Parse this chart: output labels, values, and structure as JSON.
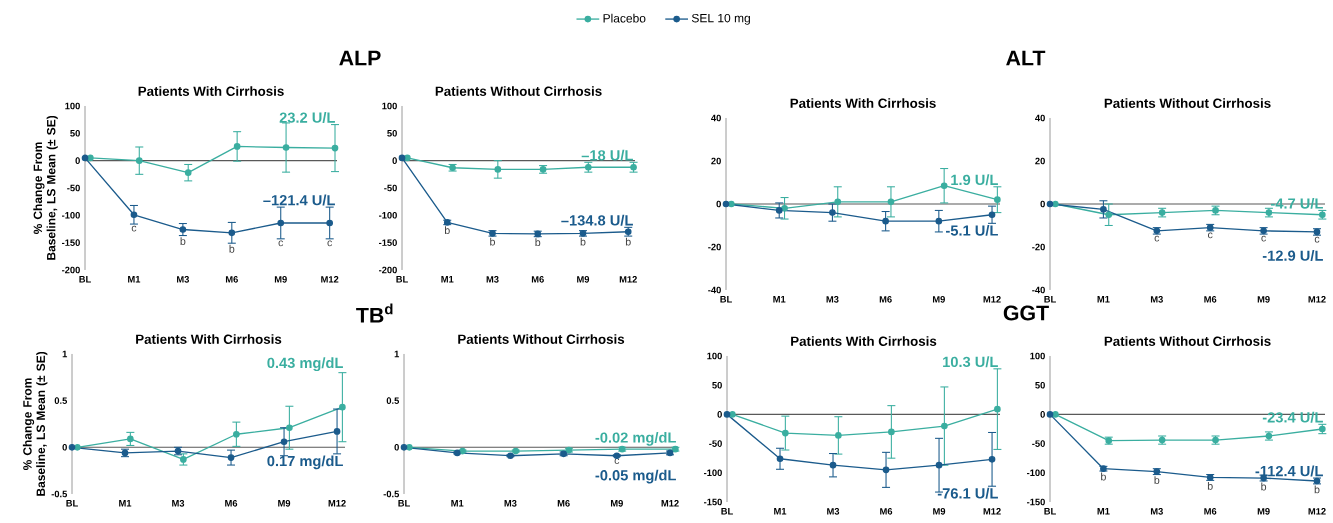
{
  "chart_data": [
    {
      "type": "line",
      "title": "ALP",
      "subtitle": "Patients With Cirrhosis",
      "ylabel": "% Change From Baseline, LS Mean (± SE)",
      "legend": "top",
      "marker": "circle",
      "line_style": "solid",
      "categories": [
        "BL",
        "M1",
        "M3",
        "M6",
        "M9",
        "M12"
      ],
      "ylim": [
        -200,
        100
      ],
      "yticks": [
        -200,
        -150,
        -100,
        -50,
        0,
        50,
        100
      ],
      "ref_lines": [
        {
          "axis": "y",
          "value": 0,
          "color": "#595959"
        }
      ],
      "series": [
        {
          "name": "Placebo",
          "color": "#3aaea0",
          "values": [
            5,
            0,
            -22,
            26,
            24,
            23
          ],
          "errors": [
            null,
            25,
            15,
            27,
            45,
            43
          ]
        },
        {
          "name": "SEL 10 mg",
          "color": "#1b5b8c",
          "values": [
            5,
            -99,
            -126,
            -132,
            -114,
            -114
          ],
          "errors": [
            null,
            17,
            11,
            19,
            29,
            29
          ]
        }
      ],
      "annotations": [
        "23.2 U/L",
        "–121.4 U/L",
        {
          "text": "c",
          "x": "M1",
          "y": -99
        },
        {
          "text": "b",
          "x": "M3",
          "y": -126
        },
        {
          "text": "b",
          "x": "M6",
          "y": -132
        },
        {
          "text": "c",
          "x": "M9",
          "y": -114
        },
        {
          "text": "c",
          "x": "M12",
          "y": -114
        }
      ]
    },
    {
      "type": "line",
      "subtitle": "Patients Without Cirrhosis",
      "marker": "circle",
      "line_style": "solid",
      "categories": [
        "BL",
        "M1",
        "M3",
        "M6",
        "M9",
        "M12"
      ],
      "ylim": [
        -200,
        100
      ],
      "yticks": [
        -200,
        -150,
        -100,
        -50,
        0,
        50,
        100
      ],
      "ref_lines": [
        {
          "axis": "y",
          "value": 0,
          "color": "#595959"
        }
      ],
      "series": [
        {
          "color": "#3aaea0",
          "values": [
            5,
            -13,
            -16,
            -16,
            -12,
            -12
          ],
          "errors": [
            null,
            6,
            16,
            7,
            9,
            9
          ]
        },
        {
          "color": "#1b5b8c",
          "values": [
            5,
            -113,
            -133,
            -134,
            -133,
            -130
          ],
          "errors": [
            null,
            4,
            5,
            5,
            5,
            8
          ]
        }
      ],
      "annotations": [
        "–18 U/L",
        "–134.8 U/L",
        {
          "text": "b",
          "x": "M1",
          "y": -113
        },
        {
          "text": "b",
          "x": "M3",
          "y": -133
        },
        {
          "text": "b",
          "x": "M6",
          "y": -134
        },
        {
          "text": "b",
          "x": "M9",
          "y": -133
        },
        {
          "text": "b",
          "x": "M12",
          "y": -130
        }
      ]
    },
    {
      "type": "line",
      "title": "ALT",
      "subtitle": "Patients With Cirrhosis",
      "marker": "circle",
      "line_style": "solid",
      "categories": [
        "BL",
        "M1",
        "M3",
        "M6",
        "M9",
        "M12"
      ],
      "ylim": [
        -40,
        40
      ],
      "yticks": [
        -40,
        -20,
        0,
        20,
        40
      ],
      "ref_lines": [
        {
          "axis": "y",
          "value": 0,
          "color": "#595959"
        }
      ],
      "series": [
        {
          "color": "#3aaea0",
          "values": [
            0,
            -2,
            1,
            1,
            8.5,
            2
          ],
          "errors": [
            null,
            5,
            7,
            7,
            8,
            6
          ]
        },
        {
          "color": "#1b5b8c",
          "values": [
            0,
            -3,
            -4,
            -8,
            -8,
            -5
          ],
          "errors": [
            null,
            3.5,
            4,
            4.5,
            5,
            4
          ]
        }
      ],
      "annotations": [
        "1.9 U/L",
        "-5.1 U/L"
      ]
    },
    {
      "type": "line",
      "subtitle": "Patients Without Cirrhosis",
      "marker": "circle",
      "line_style": "solid",
      "categories": [
        "BL",
        "M1",
        "M3",
        "M6",
        "M9",
        "M12"
      ],
      "ylim": [
        -40,
        40
      ],
      "yticks": [
        -40,
        -20,
        0,
        20,
        40
      ],
      "ref_lines": [
        {
          "axis": "y",
          "value": 0,
          "color": "#595959"
        }
      ],
      "series": [
        {
          "color": "#3aaea0",
          "values": [
            0,
            -5,
            -4,
            -3,
            -4,
            -5
          ],
          "errors": [
            null,
            5,
            2,
            2,
            2,
            2
          ]
        },
        {
          "color": "#1b5b8c",
          "values": [
            0,
            -2.5,
            -12.5,
            -11,
            -12.5,
            -13
          ],
          "errors": [
            null,
            4,
            1.5,
            1.5,
            1.5,
            1.5
          ]
        }
      ],
      "annotations": [
        "-4.7 U/L",
        "-12.9 U/L",
        {
          "text": "c",
          "x": "M3",
          "y": -12.5
        },
        {
          "text": "c",
          "x": "M6",
          "y": -11
        },
        {
          "text": "c",
          "x": "M9",
          "y": -12.5
        },
        {
          "text": "c",
          "x": "M12",
          "y": -13
        }
      ]
    },
    {
      "type": "line",
      "title": "TB$^{d}$",
      "subtitle": "Patients With Cirrhosis",
      "ylabel": "% Change From Baseline, LS Mean (± SE)",
      "marker": "circle",
      "line_style": "solid",
      "categories": [
        "BL",
        "M1",
        "M3",
        "M6",
        "M9",
        "M12"
      ],
      "ylim": [
        -0.5,
        1
      ],
      "yticks": [
        -0.5,
        0,
        0.5,
        1
      ],
      "ref_lines": [
        {
          "axis": "y",
          "value": 0,
          "color": "#595959"
        }
      ],
      "series": [
        {
          "color": "#3aaea0",
          "values": [
            0,
            0.09,
            -0.13,
            0.14,
            0.21,
            0.43
          ],
          "errors": [
            null,
            0.07,
            0.06,
            0.13,
            0.23,
            0.37
          ]
        },
        {
          "color": "#1b5b8c",
          "values": [
            0,
            -0.06,
            -0.04,
            -0.11,
            0.06,
            0.17
          ],
          "errors": [
            null,
            0.04,
            0.04,
            0.08,
            0.15,
            0.24
          ]
        }
      ],
      "annotations": [
        "0.43 mg/dL",
        "0.17 mg/dL"
      ]
    },
    {
      "type": "line",
      "subtitle": "Patients Without Cirrhosis",
      "marker": "circle",
      "line_style": "solid",
      "categories": [
        "BL",
        "M1",
        "M3",
        "M6",
        "M9",
        "M12"
      ],
      "ylim": [
        -0.5,
        1
      ],
      "yticks": [
        -0.5,
        0,
        0.5,
        1
      ],
      "ref_lines": [
        {
          "axis": "y",
          "value": 0,
          "color": "#595959"
        }
      ],
      "series": [
        {
          "color": "#3aaea0",
          "values": [
            0,
            -0.04,
            -0.04,
            -0.03,
            -0.02,
            -0.02
          ],
          "errors": [
            null,
            0.01,
            0.01,
            0.02,
            0.02,
            0.02
          ]
        },
        {
          "color": "#1b5b8c",
          "values": [
            0,
            -0.06,
            -0.09,
            -0.07,
            -0.09,
            -0.06
          ],
          "errors": [
            null,
            0.01,
            0.01,
            0.02,
            0.01,
            0.02
          ]
        }
      ],
      "annotations": [
        "-0.02 mg/dL",
        "-0.05 mg/dL",
        {
          "text": "c",
          "x": "M9",
          "y": -0.09
        }
      ]
    },
    {
      "type": "line",
      "title": "GGT",
      "subtitle": "Patients With Cirrhosis",
      "marker": "circle",
      "line_style": "solid",
      "categories": [
        "BL",
        "M1",
        "M3",
        "M6",
        "M9",
        "M12"
      ],
      "ylim": [
        -150,
        100
      ],
      "yticks": [
        -150,
        -100,
        -50,
        0,
        50,
        100
      ],
      "ref_lines": [
        {
          "axis": "y",
          "value": 0,
          "color": "#595959"
        }
      ],
      "series": [
        {
          "color": "#3aaea0",
          "values": [
            0,
            -32,
            -36,
            -30,
            -20,
            9
          ],
          "errors": [
            null,
            29,
            32,
            45,
            67,
            69
          ]
        },
        {
          "color": "#1b5b8c",
          "values": [
            0,
            -76,
            -87,
            -95,
            -87,
            -77
          ],
          "errors": [
            null,
            18,
            20,
            30,
            46,
            46
          ]
        }
      ],
      "annotations": [
        "10.3 U/L",
        "-76.1 U/L"
      ]
    },
    {
      "type": "line",
      "subtitle": "Patients Without Cirrhosis",
      "marker": "circle",
      "line_style": "solid",
      "categories": [
        "BL",
        "M1",
        "M3",
        "M6",
        "M9",
        "M12"
      ],
      "ylim": [
        -150,
        100
      ],
      "yticks": [
        -150,
        -100,
        -50,
        0,
        50,
        100
      ],
      "ref_lines": [
        {
          "axis": "y",
          "value": 0,
          "color": "#595959"
        }
      ],
      "series": [
        {
          "color": "#3aaea0",
          "values": [
            0,
            -45,
            -44,
            -44,
            -37,
            -25
          ],
          "errors": [
            null,
            6,
            7,
            7,
            7,
            8
          ]
        },
        {
          "color": "#1b5b8c",
          "values": [
            0,
            -93,
            -98,
            -108,
            -109,
            -114
          ],
          "errors": [
            null,
            4,
            5,
            5,
            5,
            5
          ]
        }
      ],
      "annotations": [
        "-23.4 U/L",
        "-112.4 U/L",
        {
          "text": "b",
          "x": "M1",
          "y": -93
        },
        {
          "text": "b",
          "x": "M3",
          "y": -98
        },
        {
          "text": "b",
          "x": "M6",
          "y": -108
        },
        {
          "text": "b",
          "x": "M9",
          "y": -109
        },
        {
          "text": "b",
          "x": "M12",
          "y": -114
        }
      ]
    }
  ]
}
